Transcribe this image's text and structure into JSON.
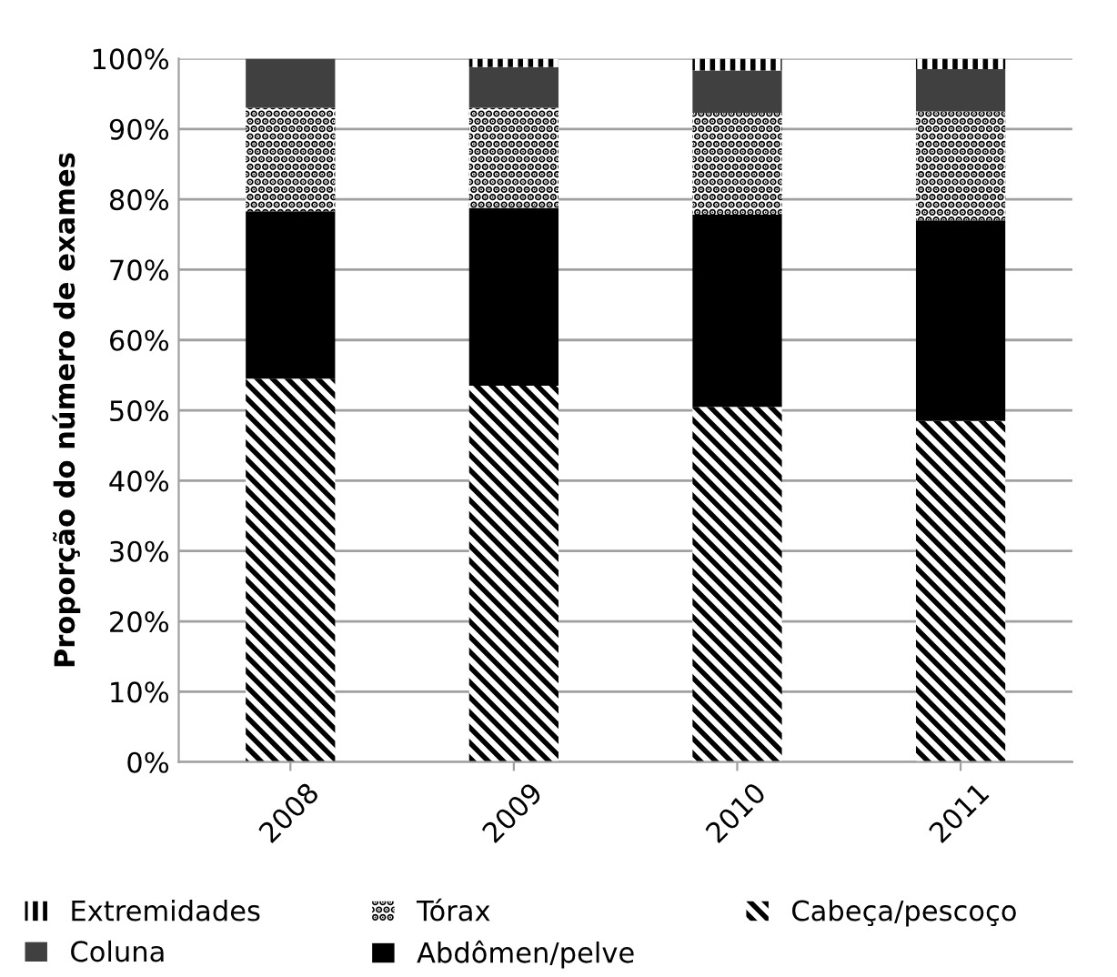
{
  "chart_data": {
    "type": "bar",
    "stacked": true,
    "ylabel": "Proporção do número de exames",
    "categories": [
      "2008",
      "2009",
      "2010",
      "2011"
    ],
    "series": [
      {
        "name": "Cabeça/pescoço",
        "color": "#000000",
        "values": [
          54.5,
          53.5,
          50.5,
          48.5
        ]
      },
      {
        "name": "Abdômen/pelve",
        "color": "#000000",
        "values": [
          23.8,
          25.3,
          27.3,
          28.5
        ]
      },
      {
        "name": "Tórax",
        "color": "#000000",
        "values": [
          14.7,
          14.2,
          14.5,
          15.5
        ]
      },
      {
        "name": "Coluna",
        "color": "#404040",
        "values": [
          7,
          5.8,
          6,
          6
        ]
      },
      {
        "name": "Extremidades",
        "color": "#000000",
        "values": [
          0,
          1.2,
          1.7,
          1.5
        ]
      }
    ],
    "ylim": [
      0,
      100
    ],
    "yticks": [
      {
        "value": 0,
        "label": "0%"
      },
      {
        "value": 10,
        "label": "10%"
      },
      {
        "value": 20,
        "label": "20%"
      },
      {
        "value": 30,
        "label": "30%"
      },
      {
        "value": 40,
        "label": "40%"
      },
      {
        "value": 50,
        "label": "50%"
      },
      {
        "value": 60,
        "label": "60%"
      },
      {
        "value": 70,
        "label": "70%"
      },
      {
        "value": 80,
        "label": "80%"
      },
      {
        "value": 90,
        "label": "90%"
      },
      {
        "value": 100,
        "label": "100%"
      }
    ],
    "grid": "y",
    "legend": "bottom"
  }
}
